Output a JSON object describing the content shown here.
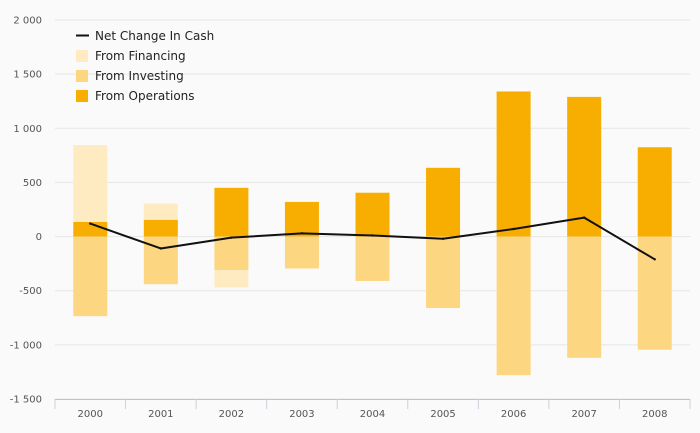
{
  "chart_data": {
    "type": "bar",
    "stacked": true,
    "categories": [
      "2000",
      "2001",
      "2002",
      "2003",
      "2004",
      "2005",
      "2006",
      "2007",
      "2008"
    ],
    "series": [
      {
        "name": "From Operations",
        "kind": "bar",
        "color": "#f7ae00",
        "values": [
          135,
          155,
          450,
          320,
          405,
          635,
          1340,
          1290,
          825
        ]
      },
      {
        "name": "From Investing",
        "kind": "bar",
        "color": "#fdd682",
        "values": [
          -735,
          -440,
          -310,
          -295,
          -410,
          -660,
          -1280,
          -1120,
          -1045
        ]
      },
      {
        "name": "From Financing",
        "kind": "bar",
        "color": "#ffebc2",
        "values": [
          710,
          150,
          -160,
          0,
          0,
          0,
          0,
          0,
          0
        ]
      },
      {
        "name": "Net Change In Cash",
        "kind": "line",
        "color": "#111111",
        "values": [
          120,
          -110,
          -10,
          30,
          10,
          -20,
          70,
          175,
          -210
        ]
      }
    ],
    "legend_order": [
      "Net Change In Cash",
      "From Financing",
      "From Investing",
      "From Operations"
    ],
    "y_ticks": [
      "2 000",
      "1 500",
      "1 000",
      "500",
      "0",
      "-500",
      "-1 000",
      "-1 500"
    ],
    "y_tick_values": [
      2000,
      1500,
      1000,
      500,
      0,
      -500,
      -1000,
      -1500
    ],
    "ylim": [
      -1500,
      2000
    ],
    "legend_position": "top-left",
    "grid": true
  }
}
